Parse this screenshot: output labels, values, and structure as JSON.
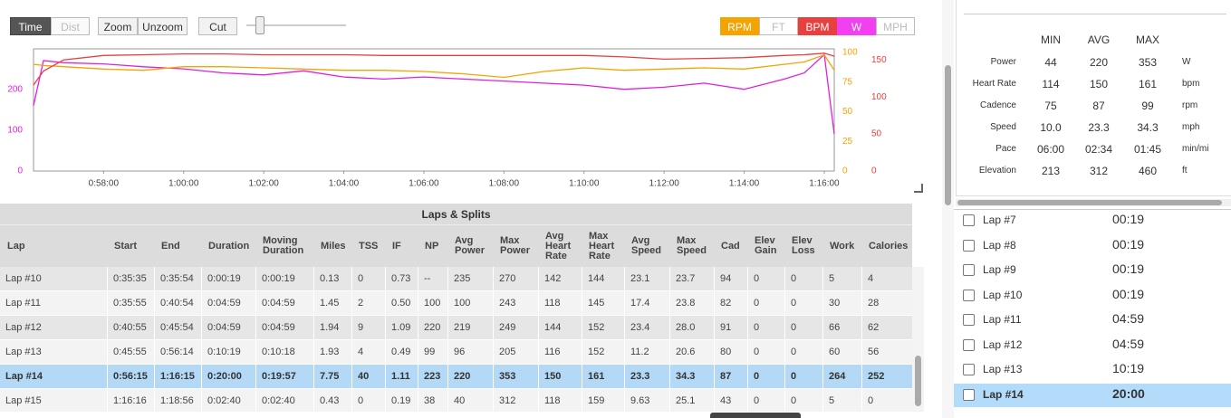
{
  "toolbar": {
    "left": [
      {
        "label": "Time",
        "state": "active"
      },
      {
        "label": "Dist",
        "state": "disabled"
      },
      {
        "label": "Zoom",
        "state": "normal"
      },
      {
        "label": "Unzoom",
        "state": "normal"
      },
      {
        "label": "Cut",
        "state": "normal"
      }
    ],
    "right": [
      {
        "label": "RPM",
        "color": "#f5a300",
        "on": true
      },
      {
        "label": "FT",
        "color": "#bbbbbb",
        "on": false
      },
      {
        "label": "BPM",
        "color": "#e8403f",
        "on": true
      },
      {
        "label": "W",
        "color": "#f23ff2",
        "on": true
      },
      {
        "label": "MPH",
        "color": "#bbbbbb",
        "on": false
      }
    ]
  },
  "chart_data": {
    "type": "line",
    "x": [
      56.25,
      56.5,
      57,
      58,
      59,
      60,
      61,
      62,
      63,
      64,
      65,
      66,
      67,
      68,
      69,
      70,
      71,
      72,
      73,
      74,
      75,
      75.5,
      76,
      76.25
    ],
    "xlim": [
      56.25,
      76.25
    ],
    "xticks": [
      {
        "value": 58,
        "label": "0:58:00"
      },
      {
        "value": 60,
        "label": "1:00:00"
      },
      {
        "value": 62,
        "label": "1:02:00"
      },
      {
        "value": 64,
        "label": "1:04:00"
      },
      {
        "value": 66,
        "label": "1:06:00"
      },
      {
        "value": 68,
        "label": "1:08:00"
      },
      {
        "value": 70,
        "label": "1:10:00"
      },
      {
        "value": 72,
        "label": "1:12:00"
      },
      {
        "value": 74,
        "label": "1:14:00"
      },
      {
        "value": 76,
        "label": "1:16:00"
      }
    ],
    "ylim": [
      0,
      290
    ],
    "yticks": [
      0,
      100,
      200
    ],
    "ycolor": "#e020e0",
    "y2lim": [
      0,
      100
    ],
    "y2ticks": [
      0,
      25,
      50,
      75,
      100
    ],
    "y2color": "#f5a300",
    "y3lim": [
      0,
      160
    ],
    "y3ticks": [
      0,
      50,
      100,
      150
    ],
    "y3color": "#e8403f",
    "series": [
      {
        "name": "W",
        "color": "#e020e0",
        "axis": "y",
        "values": [
          160,
          270,
          265,
          262,
          255,
          250,
          240,
          235,
          245,
          230,
          225,
          230,
          225,
          220,
          215,
          210,
          200,
          205,
          215,
          200,
          225,
          240,
          285,
          90
        ]
      },
      {
        "name": "RPM",
        "color": "#f5a300",
        "axis": "y2",
        "values": [
          90,
          89,
          88,
          86,
          85,
          88,
          88,
          87,
          86,
          85,
          85,
          84,
          82,
          79,
          84,
          87,
          85,
          86,
          87,
          86,
          90,
          92,
          98,
          85
        ]
      },
      {
        "name": "BPM",
        "color": "#e8403f",
        "axis": "y3",
        "values": [
          116,
          135,
          150,
          156,
          157,
          158,
          158,
          157,
          157,
          157,
          156,
          156,
          156,
          156,
          156,
          156,
          154,
          151,
          152,
          153,
          156,
          157,
          159,
          155
        ]
      }
    ]
  },
  "laps_table": {
    "title": "Laps & Splits",
    "columns": [
      "Lap",
      "Start",
      "End",
      "Duration",
      "Moving Duration",
      "Miles",
      "TSS",
      "IF",
      "NP",
      "Avg Power",
      "Max Power",
      "Avg Heart Rate",
      "Max Heart Rate",
      "Avg Speed",
      "Max Speed",
      "Cad",
      "Elev Gain",
      "Elev Loss",
      "Work",
      "Calories"
    ],
    "rows": [
      [
        "Lap #10",
        "0:35:35",
        "0:35:54",
        "0:00:19",
        "0:00:19",
        "0.13",
        "0",
        "0.73",
        "--",
        "235",
        "270",
        "142",
        "144",
        "23.1",
        "23.7",
        "94",
        "0",
        "0",
        "5",
        "4"
      ],
      [
        "Lap #11",
        "0:35:55",
        "0:40:54",
        "0:04:59",
        "0:04:59",
        "1.45",
        "2",
        "0.50",
        "100",
        "100",
        "243",
        "118",
        "145",
        "17.4",
        "23.8",
        "82",
        "0",
        "0",
        "30",
        "28"
      ],
      [
        "Lap #12",
        "0:40:55",
        "0:45:54",
        "0:04:59",
        "0:04:59",
        "1.94",
        "9",
        "1.09",
        "220",
        "219",
        "249",
        "144",
        "152",
        "23.4",
        "28.0",
        "91",
        "0",
        "0",
        "66",
        "62"
      ],
      [
        "Lap #13",
        "0:45:55",
        "0:56:14",
        "0:10:19",
        "0:10:18",
        "1.93",
        "4",
        "0.49",
        "99",
        "96",
        "205",
        "116",
        "152",
        "11.2",
        "20.6",
        "80",
        "0",
        "0",
        "60",
        "56"
      ],
      [
        "Lap #14",
        "0:56:15",
        "1:16:15",
        "0:20:00",
        "0:19:57",
        "7.75",
        "40",
        "1.11",
        "223",
        "220",
        "353",
        "150",
        "161",
        "23.3",
        "34.3",
        "87",
        "0",
        "0",
        "264",
        "252"
      ],
      [
        "Lap #15",
        "1:16:16",
        "1:18:56",
        "0:02:40",
        "0:02:40",
        "0.43",
        "0",
        "0.19",
        "38",
        "40",
        "312",
        "118",
        "159",
        "9.63",
        "25.1",
        "43",
        "0",
        "0",
        "5",
        "0"
      ]
    ],
    "selected_row": 4
  },
  "stats": {
    "columns": [
      "MIN",
      "AVG",
      "MAX"
    ],
    "rows": [
      {
        "label": "Power",
        "values": [
          "44",
          "220",
          "353"
        ],
        "unit": "W"
      },
      {
        "label": "Heart Rate",
        "values": [
          "114",
          "150",
          "161"
        ],
        "unit": "bpm"
      },
      {
        "label": "Cadence",
        "values": [
          "75",
          "87",
          "99"
        ],
        "unit": "rpm"
      },
      {
        "label": "Speed",
        "values": [
          "10.0",
          "23.3",
          "34.3"
        ],
        "unit": "mph"
      },
      {
        "label": "Pace",
        "values": [
          "06:00",
          "02:34",
          "01:45"
        ],
        "unit": "min/mi"
      },
      {
        "label": "Elevation",
        "values": [
          "213",
          "312",
          "460"
        ],
        "unit": "ft"
      }
    ]
  },
  "lap_list": {
    "items": [
      {
        "label": "Lap #7",
        "time": "00:19"
      },
      {
        "label": "Lap #8",
        "time": "00:19"
      },
      {
        "label": "Lap #9",
        "time": "00:19"
      },
      {
        "label": "Lap #10",
        "time": "00:19"
      },
      {
        "label": "Lap #11",
        "time": "04:59"
      },
      {
        "label": "Lap #12",
        "time": "04:59"
      },
      {
        "label": "Lap #13",
        "time": "10:19"
      },
      {
        "label": "Lap #14",
        "time": "20:00"
      }
    ],
    "selected": 7
  }
}
